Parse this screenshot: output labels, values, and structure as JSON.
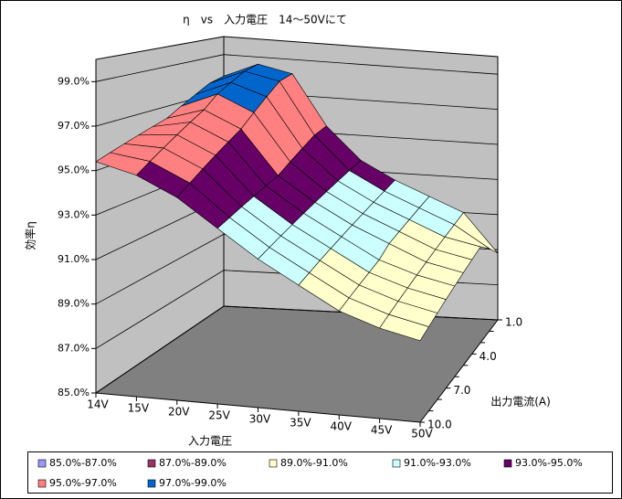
{
  "chart_data": {
    "type": "surface",
    "title": "η　vs　入力電圧　14～50Vにて",
    "x_label": "入力電圧",
    "depth_label": "出力電流(A)",
    "z_label": "効率η",
    "x": [
      "14V",
      "15V",
      "20V",
      "25V",
      "30V",
      "35V",
      "40V",
      "45V",
      "50V"
    ],
    "depth": [
      "1.0",
      null,
      null,
      "4.0",
      null,
      null,
      "7.0",
      null,
      null,
      "10.0"
    ],
    "zlim": [
      85,
      100
    ],
    "zticks": [
      {
        "value": 85,
        "label": "85.0%"
      },
      {
        "value": 87,
        "label": "87.0%"
      },
      {
        "value": 89,
        "label": "89.0%"
      },
      {
        "value": 91,
        "label": "91.0%"
      },
      {
        "value": 93,
        "label": "93.0%"
      },
      {
        "value": 95,
        "label": "95.0%"
      },
      {
        "value": 97,
        "label": "97.0%"
      },
      {
        "value": 99,
        "label": "99.0%"
      }
    ],
    "series": [
      {
        "name": "85.0%-87.0%",
        "color": "#9999ff"
      },
      {
        "name": "87.0%-89.0%",
        "color": "#993366"
      },
      {
        "name": "89.0%-91.0%",
        "color": "#ffffcc"
      },
      {
        "name": "91.0%-93.0%",
        "color": "#ccffff"
      },
      {
        "name": "93.0%-95.0%",
        "color": "#660066"
      },
      {
        "name": "95.0%-97.0%",
        "color": "#ff8080"
      },
      {
        "name": "97.0%-99.0%",
        "color": "#0066cc"
      }
    ],
    "z": [
      [
        97.8,
        98.6,
        98.2,
        95.4,
        93.6,
        92.6,
        91.8,
        91.0,
        88.8
      ],
      [
        97.6,
        98.4,
        98.0,
        95.2,
        93.4,
        92.4,
        91.6,
        90.8,
        89.6
      ],
      [
        97.2,
        98.0,
        97.4,
        94.8,
        93.2,
        92.2,
        91.4,
        90.6,
        90.2
      ],
      [
        96.8,
        97.6,
        96.8,
        94.4,
        93.0,
        92.0,
        91.2,
        90.4,
        90.0
      ],
      [
        96.4,
        97.0,
        96.2,
        94.0,
        92.8,
        91.8,
        91.0,
        90.2,
        89.8
      ],
      [
        96.2,
        96.6,
        95.8,
        93.8,
        92.6,
        91.6,
        90.6,
        90.0,
        89.6
      ],
      [
        96.0,
        96.2,
        95.4,
        93.6,
        92.4,
        91.4,
        90.4,
        89.8,
        89.4
      ],
      [
        95.8,
        95.8,
        95.0,
        93.4,
        92.2,
        91.2,
        90.2,
        89.6,
        89.2
      ],
      [
        95.6,
        95.4,
        94.6,
        93.2,
        92.0,
        91.0,
        90.0,
        89.4,
        89.0
      ],
      [
        95.4,
        95.0,
        94.2,
        93.0,
        91.8,
        90.8,
        89.8,
        89.2,
        88.8
      ]
    ]
  }
}
